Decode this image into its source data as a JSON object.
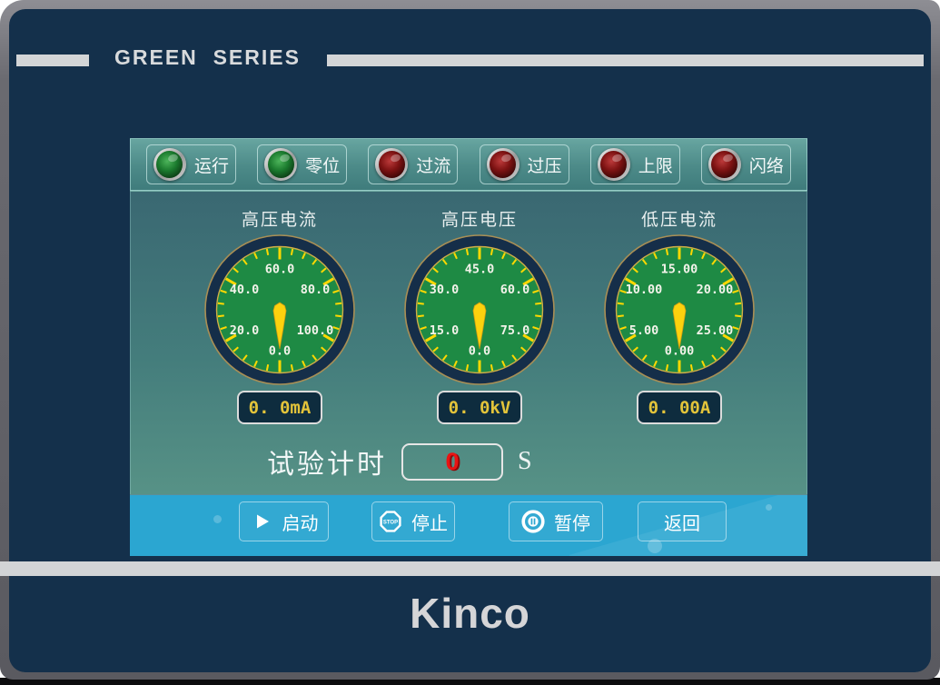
{
  "device": {
    "header_title": "GREEN  SERIES",
    "brand_logo": "Kinco"
  },
  "indicators": [
    {
      "label": "运行",
      "state_color": "green"
    },
    {
      "label": "零位",
      "state_color": "green"
    },
    {
      "label": "过流",
      "state_color": "red"
    },
    {
      "label": "过压",
      "state_color": "red"
    },
    {
      "label": "上限",
      "state_color": "red"
    },
    {
      "label": "闪络",
      "state_color": "red"
    }
  ],
  "gauges": [
    {
      "title": "高压电流",
      "scale_labels": [
        "0.0",
        "20.0",
        "40.0",
        "60.0",
        "80.0",
        "100.0"
      ],
      "scale_full_circle": 120,
      "needle_value": 0,
      "readout": "0. 0mA"
    },
    {
      "title": "高压电压",
      "scale_labels": [
        "0.0",
        "15.0",
        "30.0",
        "45.0",
        "60.0",
        "75.0"
      ],
      "scale_full_circle": 90,
      "needle_value": 0,
      "readout": "0. 0kV"
    },
    {
      "title": "低压电流",
      "scale_labels": [
        "0.00",
        "5.00",
        "10.00",
        "15.00",
        "20.00",
        "25.00"
      ],
      "scale_full_circle": 30,
      "needle_value": 0,
      "readout": "0. 00A"
    }
  ],
  "timer": {
    "label": "试验计时",
    "value": "0",
    "unit": "S"
  },
  "buttons": [
    {
      "label": "启动",
      "icon": "play-icon"
    },
    {
      "label": "停止",
      "icon": "stop-icon"
    },
    {
      "label": "暂停",
      "icon": "pause-icon"
    },
    {
      "label": "返回",
      "icon": "none"
    }
  ],
  "colors": {
    "bezel_navy": "#14304b",
    "frame_gray": "#6a6a70",
    "silver": "#d3d5d7",
    "screen_teal_top": "#3a6872",
    "screen_teal_bottom": "#579286",
    "button_bar_blue": "#2ba6d1",
    "gauge_face_green": "#1e8a44",
    "gauge_ring_navy": "#152e49",
    "tick_yellow": "#ffd800",
    "readout_text_yellow": "#e3c43a",
    "timer_value_red": "#e81414",
    "led_green": "#1b7a2e",
    "led_red": "#7c1212"
  }
}
